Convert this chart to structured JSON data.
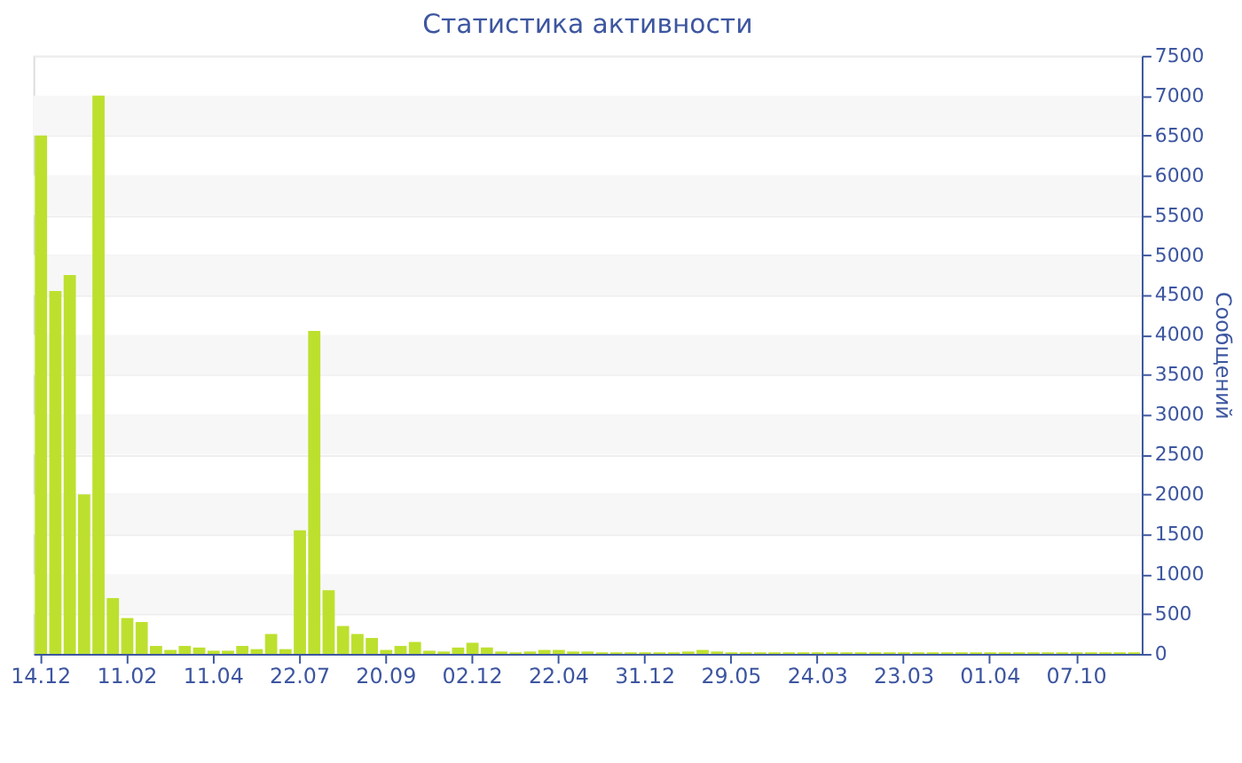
{
  "chart_data": {
    "type": "bar",
    "title": "Статистика активности",
    "ylabel": "Сообщений",
    "categories": [
      "14.12",
      null,
      null,
      null,
      null,
      null,
      "11.02",
      null,
      null,
      null,
      null,
      null,
      "11.04",
      null,
      null,
      null,
      null,
      null,
      "22.07",
      null,
      null,
      null,
      null,
      null,
      "20.09",
      null,
      null,
      null,
      null,
      null,
      "02.12",
      null,
      null,
      null,
      null,
      null,
      "22.04",
      null,
      null,
      null,
      null,
      null,
      "31.12",
      null,
      null,
      null,
      null,
      null,
      "29.05",
      null,
      null,
      null,
      null,
      null,
      "24.03",
      null,
      null,
      null,
      null,
      null,
      "23.03",
      null,
      null,
      null,
      null,
      null,
      "01.04",
      null,
      null,
      null,
      null,
      null,
      "07.10",
      null,
      null,
      null,
      null
    ],
    "values": [
      6500,
      4550,
      4750,
      2000,
      7000,
      700,
      450,
      400,
      100,
      50,
      100,
      80,
      40,
      40,
      100,
      60,
      250,
      60,
      1550,
      4050,
      800,
      350,
      250,
      200,
      50,
      100,
      150,
      40,
      30,
      80,
      140,
      80,
      30,
      20,
      30,
      50,
      50,
      30,
      30,
      20,
      20,
      20,
      20,
      20,
      20,
      30,
      50,
      30,
      20,
      20,
      20,
      20,
      20,
      20,
      20,
      20,
      20,
      20,
      20,
      20,
      20,
      20,
      20,
      20,
      20,
      20,
      20,
      20,
      20,
      20,
      20,
      20,
      20,
      20,
      20,
      20,
      20
    ],
    "color": "#bde02e",
    "ylim": [
      0,
      7500
    ],
    "yticks": [
      0,
      500,
      1000,
      1500,
      2000,
      2500,
      3000,
      3500,
      4000,
      4500,
      5000,
      5500,
      6000,
      6500,
      7000,
      7500
    ],
    "grid": true
  }
}
